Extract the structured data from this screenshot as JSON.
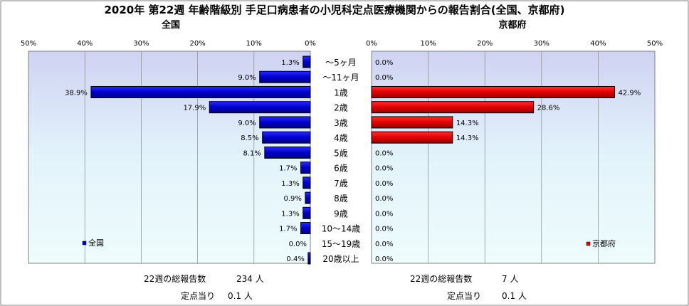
{
  "chart_data": {
    "type": "bar",
    "orientation": "horizontal",
    "title": "2020年 第22週 年齢階級別 手足口病患者の小児科定点医療機関からの報告割合(全国、京都府)",
    "categories": [
      "～5ヶ月",
      "～11ヶ月",
      "1歳",
      "2歳",
      "3歳",
      "4歳",
      "5歳",
      "6歳",
      "7歳",
      "8歳",
      "9歳",
      "10～14歳",
      "15～19歳",
      "20歳以上"
    ],
    "tick_labels": [
      "0%",
      "10%",
      "20%",
      "30%",
      "40%",
      "50%"
    ],
    "xlim": [
      0,
      50
    ],
    "panels": [
      {
        "name": "全国",
        "legend": "全国",
        "legend_position": "bottom-left",
        "direction": "right-to-left",
        "color": "#0000cc",
        "values": [
          1.3,
          9.0,
          38.9,
          17.9,
          9.0,
          8.5,
          8.1,
          1.7,
          1.3,
          0.9,
          1.3,
          1.7,
          0.0,
          0.4
        ],
        "value_labels": [
          "1.3%",
          "9.0%",
          "38.9%",
          "17.9%",
          "9.0%",
          "8.5%",
          "8.1%",
          "1.7%",
          "1.3%",
          "0.9%",
          "1.3%",
          "1.7%",
          "0.0%",
          "0.4%"
        ],
        "total_label": "22週の総報告数",
        "total": "234 人",
        "per_site_label": "定点当り",
        "per_site": "0.1 人"
      },
      {
        "name": "京都府",
        "legend": "京都府",
        "legend_position": "bottom-right",
        "direction": "left-to-right",
        "color": "#ee0000",
        "values": [
          0.0,
          0.0,
          42.9,
          28.6,
          14.3,
          14.3,
          0.0,
          0.0,
          0.0,
          0.0,
          0.0,
          0.0,
          0.0,
          0.0
        ],
        "value_labels": [
          "0.0%",
          "0.0%",
          "42.9%",
          "28.6%",
          "14.3%",
          "14.3%",
          "0.0%",
          "0.0%",
          "0.0%",
          "0.0%",
          "0.0%",
          "0.0%",
          "0.0%",
          "0.0%"
        ],
        "total_label": "22週の総報告数",
        "total": "7 人",
        "per_site_label": "定点当り",
        "per_site": "0.1 人"
      }
    ]
  }
}
